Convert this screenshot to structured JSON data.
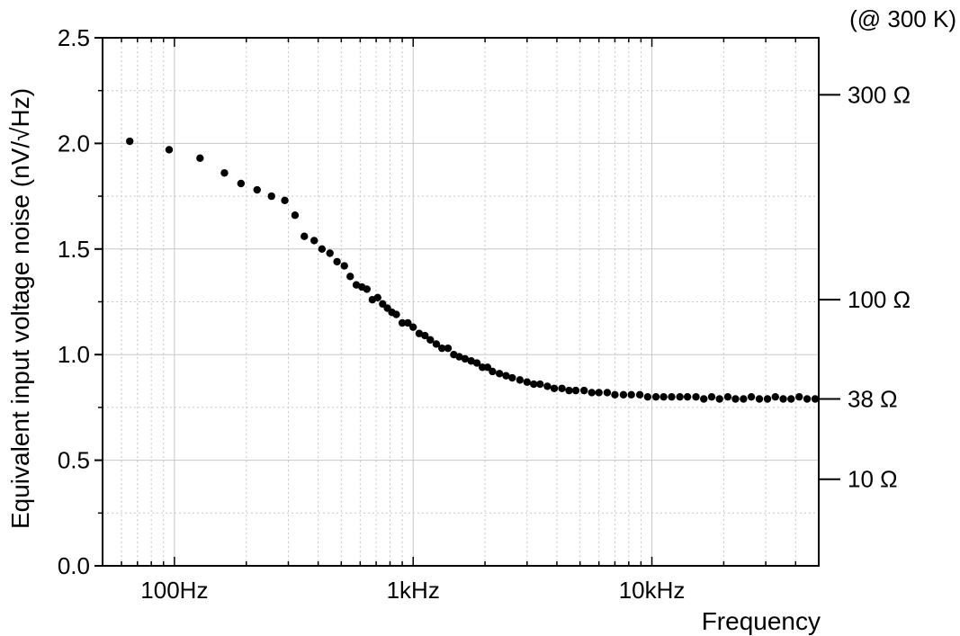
{
  "chart_data": {
    "type": "scatter",
    "title": "",
    "xlabel": "Frequency",
    "ylabel": "Equivalent input voltage noise (nV/√Hz)",
    "x_scale": "log",
    "xlim": [
      50,
      50000
    ],
    "ylim": [
      0,
      2.5
    ],
    "x_tick_values": [
      100,
      1000,
      10000
    ],
    "x_tick_labels": [
      "100Hz",
      "1kHz",
      "10kHz"
    ],
    "y_tick_values": [
      0.0,
      0.5,
      1.0,
      1.5,
      2.0,
      2.5
    ],
    "y_tick_labels": [
      "0.0",
      "0.5",
      "1.0",
      "1.5",
      "2.0",
      "2.5"
    ],
    "grid": true,
    "marker_color": "#000000",
    "right_axis": {
      "note": "(@ 300 K)",
      "ticks": [
        {
          "label": "300 Ω",
          "value": 2.23
        },
        {
          "label": "100 Ω",
          "value": 1.26
        },
        {
          "label": "38 Ω",
          "value": 0.79
        },
        {
          "label": "10 Ω",
          "value": 0.41
        }
      ]
    },
    "series": [
      {
        "points": [
          [
            65,
            2.01
          ],
          [
            95,
            1.97
          ],
          [
            128,
            1.93
          ],
          [
            162,
            1.86
          ],
          [
            190,
            1.81
          ],
          [
            222,
            1.78
          ],
          [
            255,
            1.75
          ],
          [
            290,
            1.73
          ],
          [
            320,
            1.66
          ],
          [
            350,
            1.56
          ],
          [
            385,
            1.54
          ],
          [
            415,
            1.5
          ],
          [
            448,
            1.48
          ],
          [
            480,
            1.44
          ],
          [
            515,
            1.42
          ],
          [
            545,
            1.37
          ],
          [
            578,
            1.33
          ],
          [
            610,
            1.32
          ],
          [
            640,
            1.31
          ],
          [
            675,
            1.26
          ],
          [
            710,
            1.27
          ],
          [
            745,
            1.24
          ],
          [
            780,
            1.22
          ],
          [
            815,
            1.2
          ],
          [
            850,
            1.19
          ],
          [
            900,
            1.15
          ],
          [
            950,
            1.15
          ],
          [
            1000,
            1.13
          ],
          [
            1060,
            1.1
          ],
          [
            1120,
            1.09
          ],
          [
            1180,
            1.07
          ],
          [
            1250,
            1.05
          ],
          [
            1320,
            1.03
          ],
          [
            1400,
            1.03
          ],
          [
            1480,
            1.0
          ],
          [
            1560,
            0.99
          ],
          [
            1650,
            0.98
          ],
          [
            1750,
            0.97
          ],
          [
            1850,
            0.96
          ],
          [
            1950,
            0.94
          ],
          [
            2050,
            0.94
          ],
          [
            2150,
            0.92
          ],
          [
            2300,
            0.91
          ],
          [
            2450,
            0.9
          ],
          [
            2600,
            0.89
          ],
          [
            2800,
            0.88
          ],
          [
            3000,
            0.87
          ],
          [
            3200,
            0.86
          ],
          [
            3400,
            0.86
          ],
          [
            3650,
            0.85
          ],
          [
            3900,
            0.84
          ],
          [
            4200,
            0.84
          ],
          [
            4500,
            0.83
          ],
          [
            4800,
            0.83
          ],
          [
            5200,
            0.83
          ],
          [
            5600,
            0.82
          ],
          [
            6000,
            0.82
          ],
          [
            6500,
            0.82
          ],
          [
            7000,
            0.81
          ],
          [
            7600,
            0.81
          ],
          [
            8200,
            0.81
          ],
          [
            8900,
            0.81
          ],
          [
            9600,
            0.8
          ],
          [
            10400,
            0.8
          ],
          [
            11200,
            0.8
          ],
          [
            12100,
            0.8
          ],
          [
            13100,
            0.8
          ],
          [
            14100,
            0.8
          ],
          [
            15300,
            0.8
          ],
          [
            16500,
            0.79
          ],
          [
            17800,
            0.8
          ],
          [
            19200,
            0.79
          ],
          [
            20800,
            0.8
          ],
          [
            22400,
            0.79
          ],
          [
            24200,
            0.79
          ],
          [
            26100,
            0.8
          ],
          [
            28200,
            0.79
          ],
          [
            30500,
            0.79
          ],
          [
            32900,
            0.8
          ],
          [
            35500,
            0.79
          ],
          [
            38300,
            0.79
          ],
          [
            41400,
            0.8
          ],
          [
            44700,
            0.79
          ],
          [
            48300,
            0.79
          ]
        ]
      }
    ]
  }
}
